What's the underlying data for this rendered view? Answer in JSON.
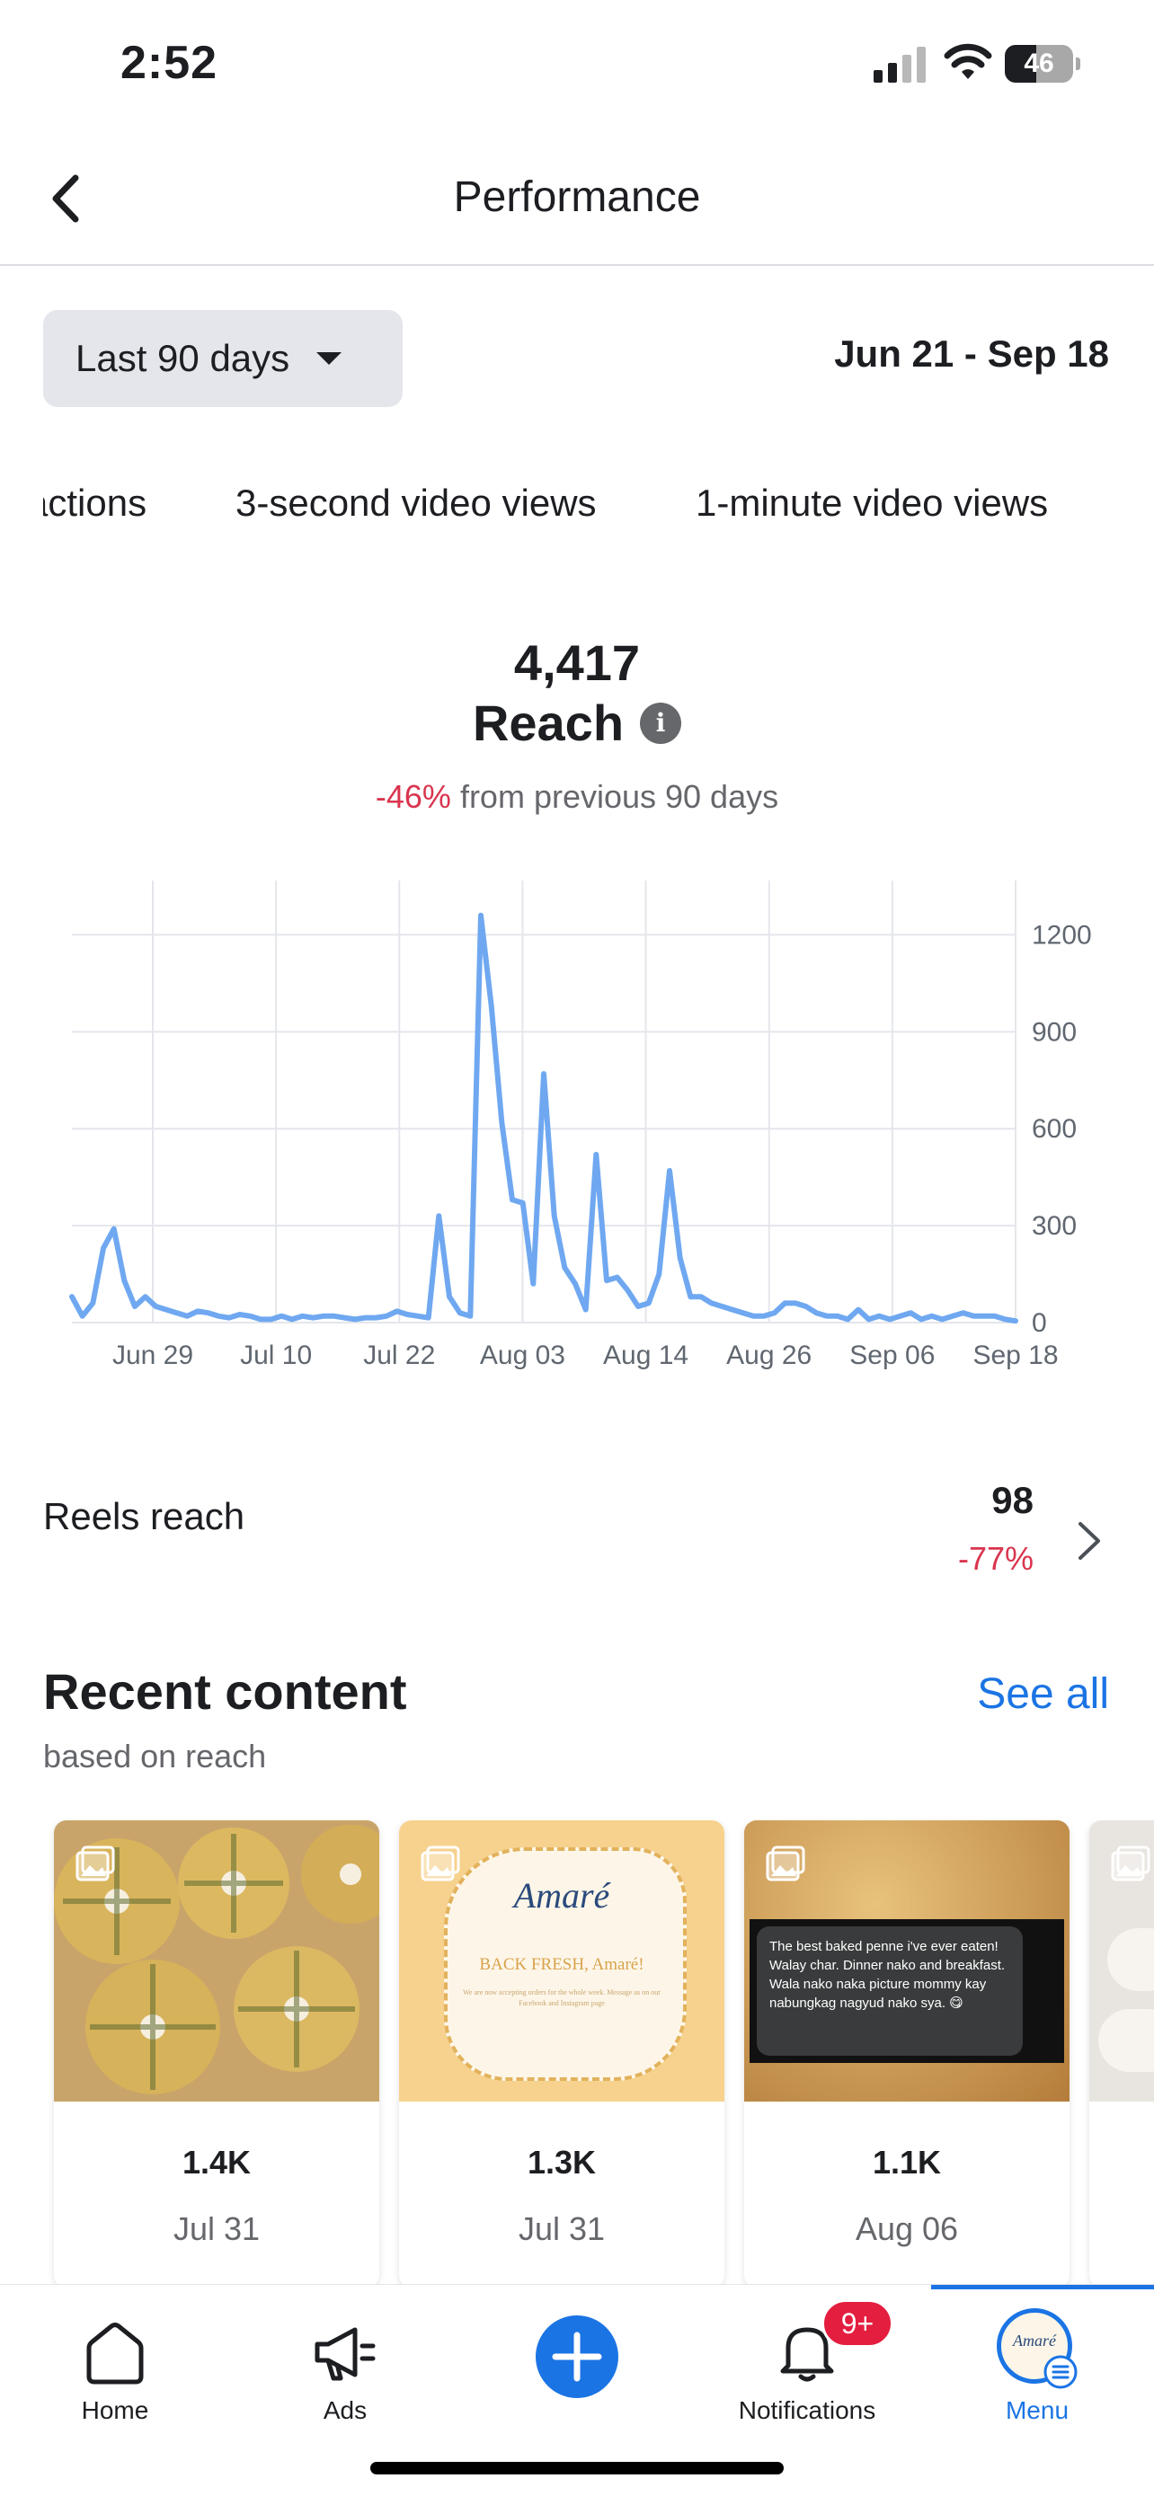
{
  "status_bar": {
    "time": "2:52",
    "battery": "46",
    "battery_level": 0.46
  },
  "header": {
    "title": "Performance"
  },
  "filters": {
    "range_label": "Last 90 days",
    "date_range": "Jun 21 - Sep 18"
  },
  "metric_tabs": [
    "actions",
    "3-second video views",
    "1-minute video views"
  ],
  "summary": {
    "value": "4,417",
    "label": "Reach",
    "change": "-46%",
    "change_suffix": "from previous 90 days"
  },
  "chart_data": {
    "type": "line",
    "x_ticks": [
      "Jun 29",
      "Jul 10",
      "Jul 22",
      "Aug 03",
      "Aug 14",
      "Aug 26",
      "Sep 06",
      "Sep 18"
    ],
    "y_ticks": [
      "1200",
      "900",
      "600",
      "300",
      "0"
    ],
    "ylim": [
      0,
      1200
    ],
    "grid": true,
    "color": "#6fa8f0",
    "series": [
      {
        "values": [
          80,
          20,
          60,
          230,
          290,
          130,
          50,
          80,
          50,
          40,
          30,
          20,
          35,
          30,
          20,
          15,
          25,
          20,
          10,
          10,
          20,
          10,
          20,
          15,
          20,
          20,
          15,
          10,
          15,
          15,
          20,
          35,
          25,
          20,
          15,
          330,
          80,
          30,
          20,
          1260,
          980,
          620,
          380,
          370,
          120,
          770,
          330,
          170,
          120,
          40,
          520,
          130,
          140,
          100,
          50,
          60,
          150,
          470,
          200,
          80,
          80,
          60,
          50,
          40,
          30,
          20,
          20,
          30,
          60,
          60,
          50,
          30,
          20,
          20,
          10,
          40,
          10,
          20,
          10,
          20,
          30,
          10,
          20,
          10,
          20,
          30,
          20,
          20,
          20,
          10,
          5
        ]
      }
    ]
  },
  "reels": {
    "label": "Reels reach",
    "value": "98",
    "change": "-77%"
  },
  "recent": {
    "title": "Recent content",
    "see_all": "See all",
    "subtitle": "based on reach",
    "cards": [
      {
        "value": "1.4K",
        "date": "Jul 31"
      },
      {
        "value": "1.3K",
        "date": "Jul 31",
        "thumb_brand": "Amaré",
        "thumb_headline": "BACK FRESH, Amaré!",
        "thumb_body": "We are now accepting orders for the whole week. Message us on our Facebook and Instagram page"
      },
      {
        "value": "1.1K",
        "date": "Aug 06",
        "thumb_review": "The best baked penne i've ever eaten! Walay char. Dinner nako and breakfast. Wala nako naka picture mommy kay nabungkag nagyud nako sya. 😋"
      }
    ]
  },
  "nav": {
    "home": "Home",
    "ads": "Ads",
    "notifications": "Notifications",
    "notifications_badge": "9+",
    "menu": "Menu",
    "menu_avatar_text": "Amaré"
  }
}
